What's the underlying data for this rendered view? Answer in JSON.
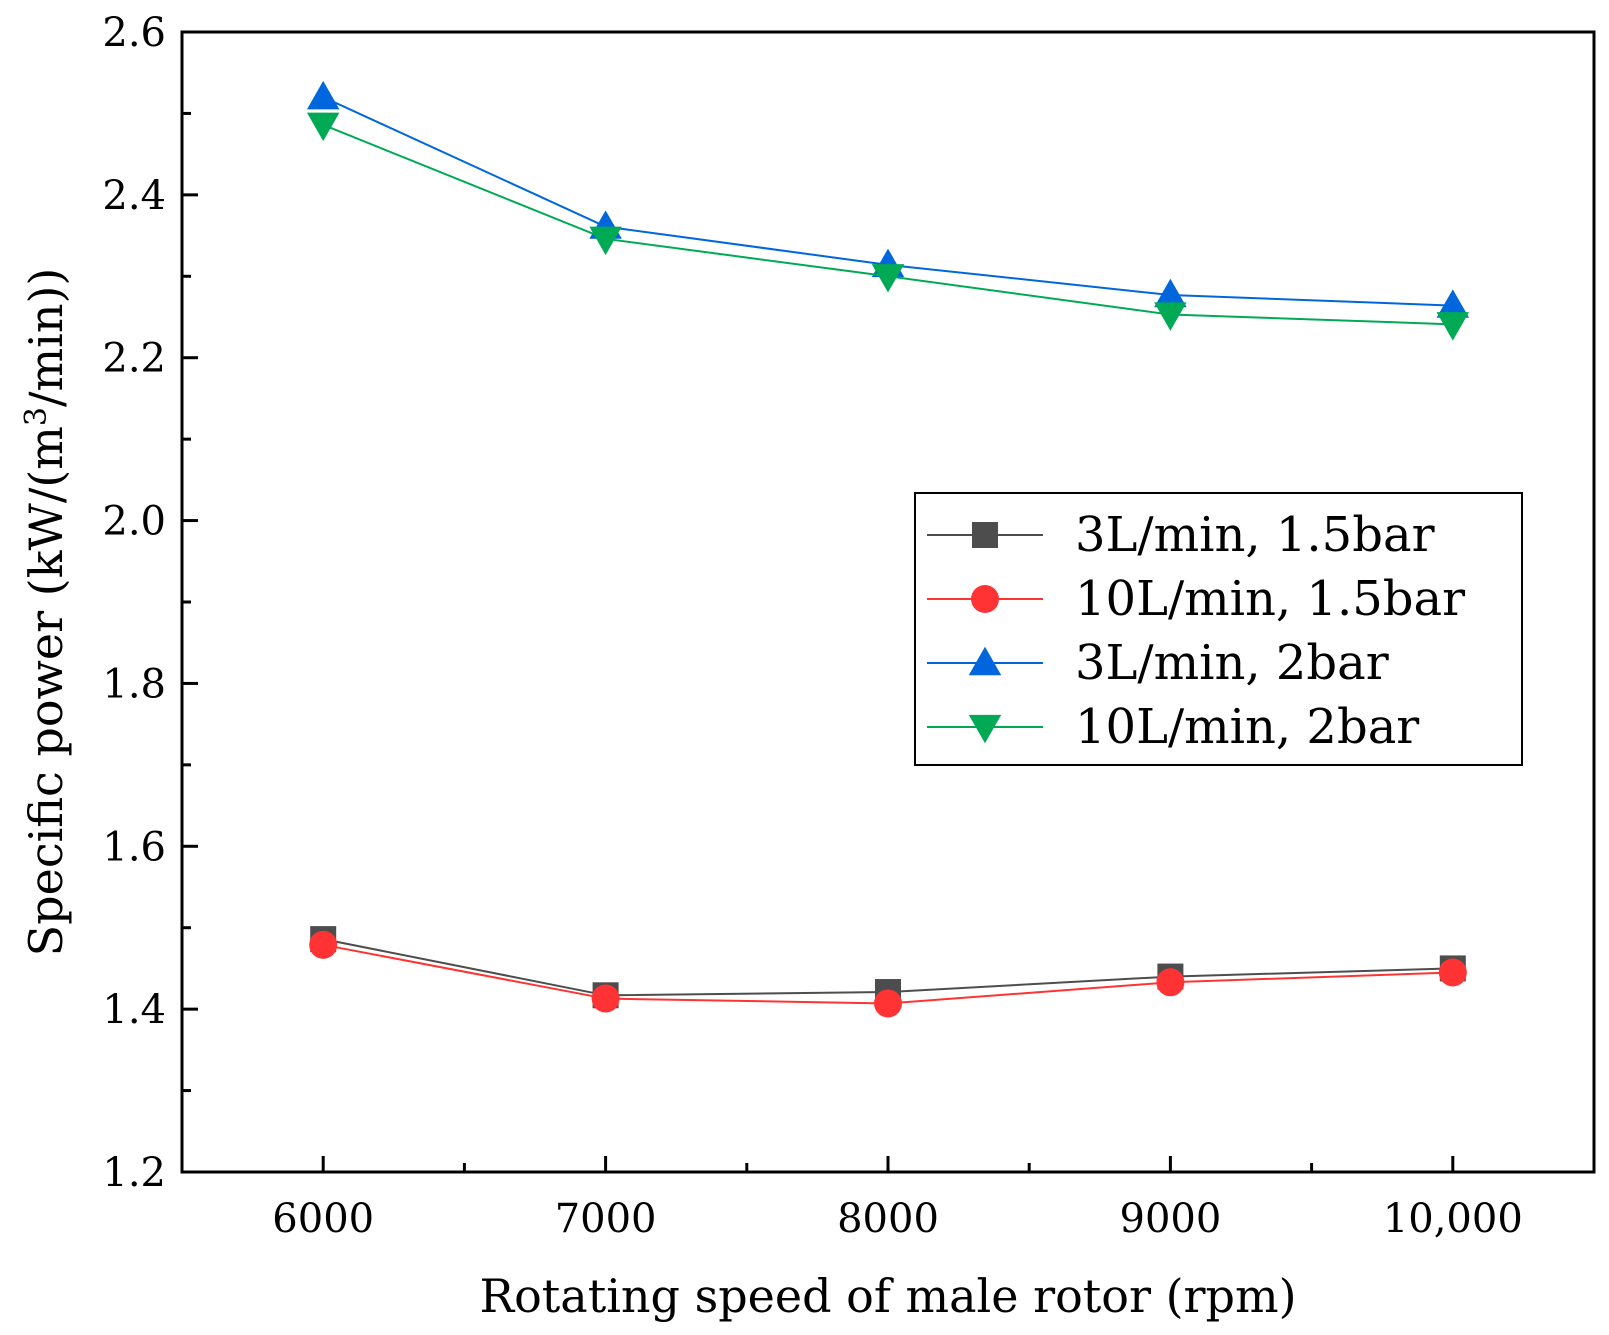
{
  "chart_data": {
    "type": "line",
    "x": [
      6000,
      7000,
      8000,
      9000,
      10000
    ],
    "xtick_labels": [
      "6000",
      "7000",
      "8000",
      "9000",
      "10,000"
    ],
    "xlabel": "Rotating speed of male rotor (rpm)",
    "ylabel_prefix": "Specific power (kW/(m",
    "ylabel_sup": "3",
    "ylabel_suffix": "/min))",
    "ylim": [
      1.2,
      2.6
    ],
    "xlim": [
      5500,
      10500
    ],
    "yticks": [
      1.2,
      1.4,
      1.6,
      1.8,
      2.0,
      2.2,
      2.4,
      2.6
    ],
    "ytick_labels": [
      "1.2",
      "1.4",
      "1.6",
      "1.8",
      "2.0",
      "2.2",
      "2.4",
      "2.6"
    ],
    "legend_position": "center-right",
    "grid": false,
    "series": [
      {
        "name": "3L/min, 1.5bar",
        "marker": "square",
        "color": "#4d4d4d",
        "values": [
          1.486,
          1.417,
          1.421,
          1.44,
          1.45
        ]
      },
      {
        "name": "10L/min, 1.5bar",
        "marker": "circle",
        "color": "#ff3333",
        "values": [
          1.479,
          1.413,
          1.407,
          1.433,
          1.445
        ]
      },
      {
        "name": "3L/min, 2bar",
        "marker": "triangle-up",
        "color": "#0066dd",
        "values": [
          2.52,
          2.361,
          2.314,
          2.277,
          2.264
        ]
      },
      {
        "name": "10L/min, 2bar",
        "marker": "triangle-down",
        "color": "#00aa55",
        "values": [
          2.486,
          2.346,
          2.3,
          2.253,
          2.241
        ]
      }
    ]
  }
}
